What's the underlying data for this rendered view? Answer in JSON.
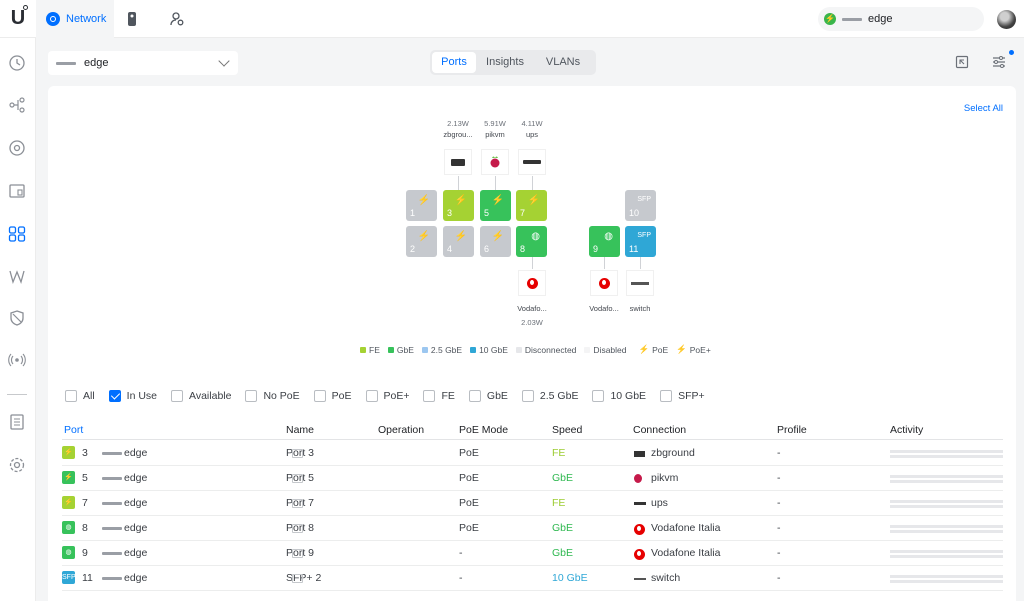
{
  "topbar": {
    "app_name": "Network",
    "search_device": "edge"
  },
  "header": {
    "device_name": "edge",
    "tabs": [
      "Ports",
      "Insights",
      "VLANs"
    ],
    "active_tab": "Ports"
  },
  "panel": {
    "select_all": "Select All",
    "top_devices": [
      {
        "power": "2.13W",
        "name": "zbgrou..."
      },
      {
        "power": "5.91W",
        "name": "pikvm"
      },
      {
        "power": "4.11W",
        "name": "ups"
      }
    ],
    "ports": [
      {
        "num": "1",
        "kind": "gray",
        "symbol": "poe+"
      },
      {
        "num": "2",
        "kind": "gray",
        "symbol": "poe+"
      },
      {
        "num": "3",
        "kind": "fe",
        "symbol": "poe"
      },
      {
        "num": "4",
        "kind": "gray",
        "symbol": "poe"
      },
      {
        "num": "5",
        "kind": "gbe",
        "symbol": "poe"
      },
      {
        "num": "6",
        "kind": "gray",
        "symbol": "poe"
      },
      {
        "num": "7",
        "kind": "fe",
        "symbol": "poe"
      },
      {
        "num": "8",
        "kind": "gbe",
        "symbol": "globe"
      },
      {
        "num": "9",
        "kind": "gbe",
        "symbol": "globe"
      },
      {
        "num": "10",
        "kind": "gray",
        "symbol": "SFP"
      },
      {
        "num": "11",
        "kind": "10g",
        "symbol": "SFP"
      }
    ],
    "bottom_devices": [
      {
        "name": "Vodafo...",
        "power": "2.03W"
      },
      {
        "name": "Vodafo...",
        "power": ""
      },
      {
        "name": "switch",
        "power": ""
      }
    ],
    "legend": [
      {
        "label": "FE",
        "color": "#a5d233"
      },
      {
        "label": "GbE",
        "color": "#37c25b"
      },
      {
        "label": "2.5 GbE",
        "color": "#9cc7f0"
      },
      {
        "label": "10 GbE",
        "color": "#2fa7d6"
      },
      {
        "label": "Disconnected",
        "color": "#e6e7ea"
      },
      {
        "label": "Disabled",
        "color": "#f4f4f5"
      },
      {
        "label": "PoE",
        "color": ""
      },
      {
        "label": "PoE+",
        "color": ""
      }
    ]
  },
  "filters": [
    {
      "label": "All",
      "checked": false
    },
    {
      "label": "In Use",
      "checked": true
    },
    {
      "label": "Available",
      "checked": false
    },
    {
      "label": "No PoE",
      "checked": false
    },
    {
      "label": "PoE",
      "checked": false
    },
    {
      "label": "PoE+",
      "checked": false
    },
    {
      "label": "FE",
      "checked": false
    },
    {
      "label": "GbE",
      "checked": false
    },
    {
      "label": "2.5 GbE",
      "checked": false
    },
    {
      "label": "10 GbE",
      "checked": false
    },
    {
      "label": "SFP+",
      "checked": false
    }
  ],
  "table": {
    "columns": [
      "Port",
      "Name",
      "Operation",
      "PoE Mode",
      "Speed",
      "Connection",
      "Profile",
      "Activity"
    ],
    "rows": [
      {
        "port": "3",
        "device": "edge",
        "name": "Port 3",
        "poe": "PoE",
        "speed": "FE",
        "speed_kind": "fe",
        "connection": "zbground",
        "conn_icon": "zb-icon",
        "profile": "-",
        "badge": "fe"
      },
      {
        "port": "5",
        "device": "edge",
        "name": "Port 5",
        "poe": "PoE",
        "speed": "GbE",
        "speed_kind": "gbe",
        "connection": "pikvm",
        "conn_icon": "raspberry-icon",
        "profile": "-",
        "badge": "gbe"
      },
      {
        "port": "7",
        "device": "edge",
        "name": "Port 7",
        "poe": "PoE",
        "speed": "FE",
        "speed_kind": "fe",
        "connection": "ups",
        "conn_icon": "ups-icon",
        "profile": "-",
        "badge": "fe"
      },
      {
        "port": "8",
        "device": "edge",
        "name": "Port 8",
        "poe": "PoE",
        "speed": "GbE",
        "speed_kind": "gbe",
        "connection": "Vodafone Italia",
        "conn_icon": "vodafone-icon",
        "profile": "-",
        "badge": "globe"
      },
      {
        "port": "9",
        "device": "edge",
        "name": "Port 9",
        "poe": "-",
        "speed": "GbE",
        "speed_kind": "gbe",
        "connection": "Vodafone Italia",
        "conn_icon": "vodafone-icon",
        "profile": "-",
        "badge": "globe"
      },
      {
        "port": "11",
        "device": "edge",
        "name": "SFP+ 2",
        "poe": "-",
        "speed": "10 GbE",
        "speed_kind": "10g",
        "connection": "switch",
        "conn_icon": "switch-icon",
        "profile": "-",
        "badge": "sfp"
      }
    ]
  }
}
